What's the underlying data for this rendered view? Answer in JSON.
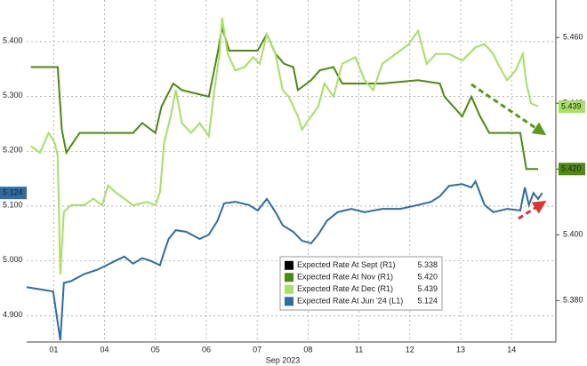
{
  "chart_data": {
    "type": "line",
    "x_label": "Sep 2023",
    "xlim": [
      -0.03,
      10.37
    ],
    "xticks": [
      {
        "value": 0.5,
        "label": "01"
      },
      {
        "value": 1.5,
        "label": "04"
      },
      {
        "value": 2.5,
        "label": "05"
      },
      {
        "value": 3.5,
        "label": "06"
      },
      {
        "value": 4.5,
        "label": "07"
      },
      {
        "value": 5.5,
        "label": "08"
      },
      {
        "value": 6.5,
        "label": "11"
      },
      {
        "value": 7.5,
        "label": "12"
      },
      {
        "value": 8.5,
        "label": "13"
      },
      {
        "value": 9.5,
        "label": "14"
      }
    ],
    "ylim": [
      4.852,
      5.476
    ],
    "yticks": [
      {
        "value": 4.9,
        "label": "4.900"
      },
      {
        "value": 5.0,
        "label": "5.000"
      },
      {
        "value": 5.1,
        "label": "5.100"
      },
      {
        "value": 5.2,
        "label": "5.200"
      },
      {
        "value": 5.3,
        "label": "5.300"
      },
      {
        "value": 5.4,
        "label": "5.400"
      }
    ],
    "y2lim": [
      5.3674,
      5.4714
    ],
    "y2ticks": [
      {
        "value": 5.38,
        "label": "5.380"
      },
      {
        "value": 5.4,
        "label": "5.400"
      },
      {
        "value": 5.42,
        "label": "5.420"
      },
      {
        "value": 5.44,
        "label": "5.440"
      },
      {
        "value": 5.46,
        "label": "5.460"
      }
    ],
    "grid": true,
    "legend": "lower-center",
    "series": [
      {
        "name": "Expected Rate At Sept (R1)",
        "color": "#000000",
        "axis": "y2",
        "x": [],
        "values": [],
        "last": 5.338,
        "last_label": "5.338"
      },
      {
        "name": "Expected Rate At Nov (R1)",
        "color": "#4f8a10",
        "axis": "y2",
        "x": [
          0.05,
          0.58,
          0.66,
          0.75,
          1.01,
          2.06,
          2.24,
          2.5,
          2.62,
          2.85,
          3.02,
          3.55,
          3.72,
          3.81,
          3.95,
          4.51,
          4.69,
          4.86,
          5.03,
          5.21,
          5.3,
          5.56,
          5.73,
          6.0,
          6.17,
          6.96,
          7.66,
          8.09,
          8.18,
          8.53,
          8.71,
          8.88,
          9.06,
          9.67,
          9.79,
          10.02
        ],
        "values": [
          5.451,
          5.451,
          5.432,
          5.425,
          5.431,
          5.431,
          5.434,
          5.431,
          5.439,
          5.446,
          5.444,
          5.442,
          5.455,
          5.463,
          5.456,
          5.456,
          5.461,
          5.455,
          5.452,
          5.451,
          5.444,
          5.447,
          5.45,
          5.451,
          5.446,
          5.446,
          5.447,
          5.446,
          5.442,
          5.436,
          5.442,
          5.436,
          5.431,
          5.431,
          5.42,
          5.42
        ],
        "last": 5.42,
        "last_label": "5.420"
      },
      {
        "name": "Expected Rate At Dec (R1)",
        "color": "#a8e063",
        "axis": "y2",
        "x": [
          0.05,
          0.23,
          0.4,
          0.52,
          0.58,
          0.63,
          0.7,
          0.84,
          1.1,
          1.28,
          1.45,
          1.57,
          1.71,
          1.89,
          2.06,
          2.33,
          2.5,
          2.59,
          2.67,
          2.8,
          2.9,
          3.02,
          3.2,
          3.37,
          3.55,
          3.64,
          3.76,
          3.81,
          3.92,
          4.07,
          4.25,
          4.42,
          4.55,
          4.69,
          4.86,
          5.0,
          5.12,
          5.3,
          5.38,
          5.56,
          5.7,
          5.82,
          6.0,
          6.17,
          6.43,
          6.61,
          6.78,
          6.96,
          7.22,
          7.48,
          7.66,
          7.83,
          8.01,
          8.27,
          8.53,
          8.79,
          8.97,
          9.14,
          9.23,
          9.41,
          9.58,
          9.72,
          9.79,
          9.88,
          10.02
        ],
        "values": [
          5.427,
          5.425,
          5.431,
          5.428,
          5.424,
          5.388,
          5.407,
          5.409,
          5.409,
          5.411,
          5.409,
          5.415,
          5.413,
          5.411,
          5.409,
          5.41,
          5.409,
          5.413,
          5.428,
          5.436,
          5.444,
          5.434,
          5.431,
          5.434,
          5.43,
          5.442,
          5.455,
          5.466,
          5.455,
          5.45,
          5.451,
          5.454,
          5.452,
          5.461,
          5.455,
          5.444,
          5.442,
          5.436,
          5.432,
          5.436,
          5.439,
          5.446,
          5.442,
          5.452,
          5.454,
          5.447,
          5.444,
          5.452,
          5.455,
          5.458,
          5.462,
          5.452,
          5.455,
          5.455,
          5.453,
          5.457,
          5.458,
          5.455,
          5.452,
          5.447,
          5.45,
          5.455,
          5.446,
          5.44,
          5.439
        ],
        "last": 5.439,
        "last_label": "5.439"
      },
      {
        "name": "Expected Rate At Jun '24 (L1)",
        "color": "#2e6da4",
        "axis": "y",
        "x": [
          -0.03,
          0.31,
          0.49,
          0.63,
          0.7,
          0.84,
          1.1,
          1.36,
          1.54,
          1.71,
          1.89,
          2.06,
          2.24,
          2.41,
          2.59,
          2.67,
          2.76,
          2.9,
          3.11,
          3.37,
          3.55,
          3.72,
          3.85,
          4.07,
          4.34,
          4.51,
          4.69,
          4.86,
          5.0,
          5.21,
          5.38,
          5.56,
          5.7,
          5.87,
          6.08,
          6.35,
          6.61,
          6.96,
          7.31,
          7.66,
          7.92,
          8.09,
          8.27,
          8.53,
          8.71,
          8.79,
          8.97,
          9.14,
          9.41,
          9.67,
          9.76,
          9.84,
          9.93,
          10.02,
          10.1
        ],
        "values": [
          4.952,
          4.947,
          4.944,
          4.855,
          4.96,
          4.963,
          4.976,
          4.984,
          4.992,
          5.0,
          5.008,
          4.995,
          5.005,
          5.0,
          4.992,
          5.016,
          5.04,
          5.056,
          5.053,
          5.04,
          5.048,
          5.073,
          5.105,
          5.108,
          5.102,
          5.092,
          5.113,
          5.089,
          5.065,
          5.053,
          5.037,
          5.032,
          5.048,
          5.073,
          5.089,
          5.095,
          5.089,
          5.095,
          5.095,
          5.102,
          5.108,
          5.118,
          5.137,
          5.14,
          5.134,
          5.145,
          5.102,
          5.089,
          5.095,
          5.092,
          5.134,
          5.102,
          5.124,
          5.113,
          5.124
        ],
        "last": 5.124,
        "last_label": "5.124"
      }
    ]
  }
}
